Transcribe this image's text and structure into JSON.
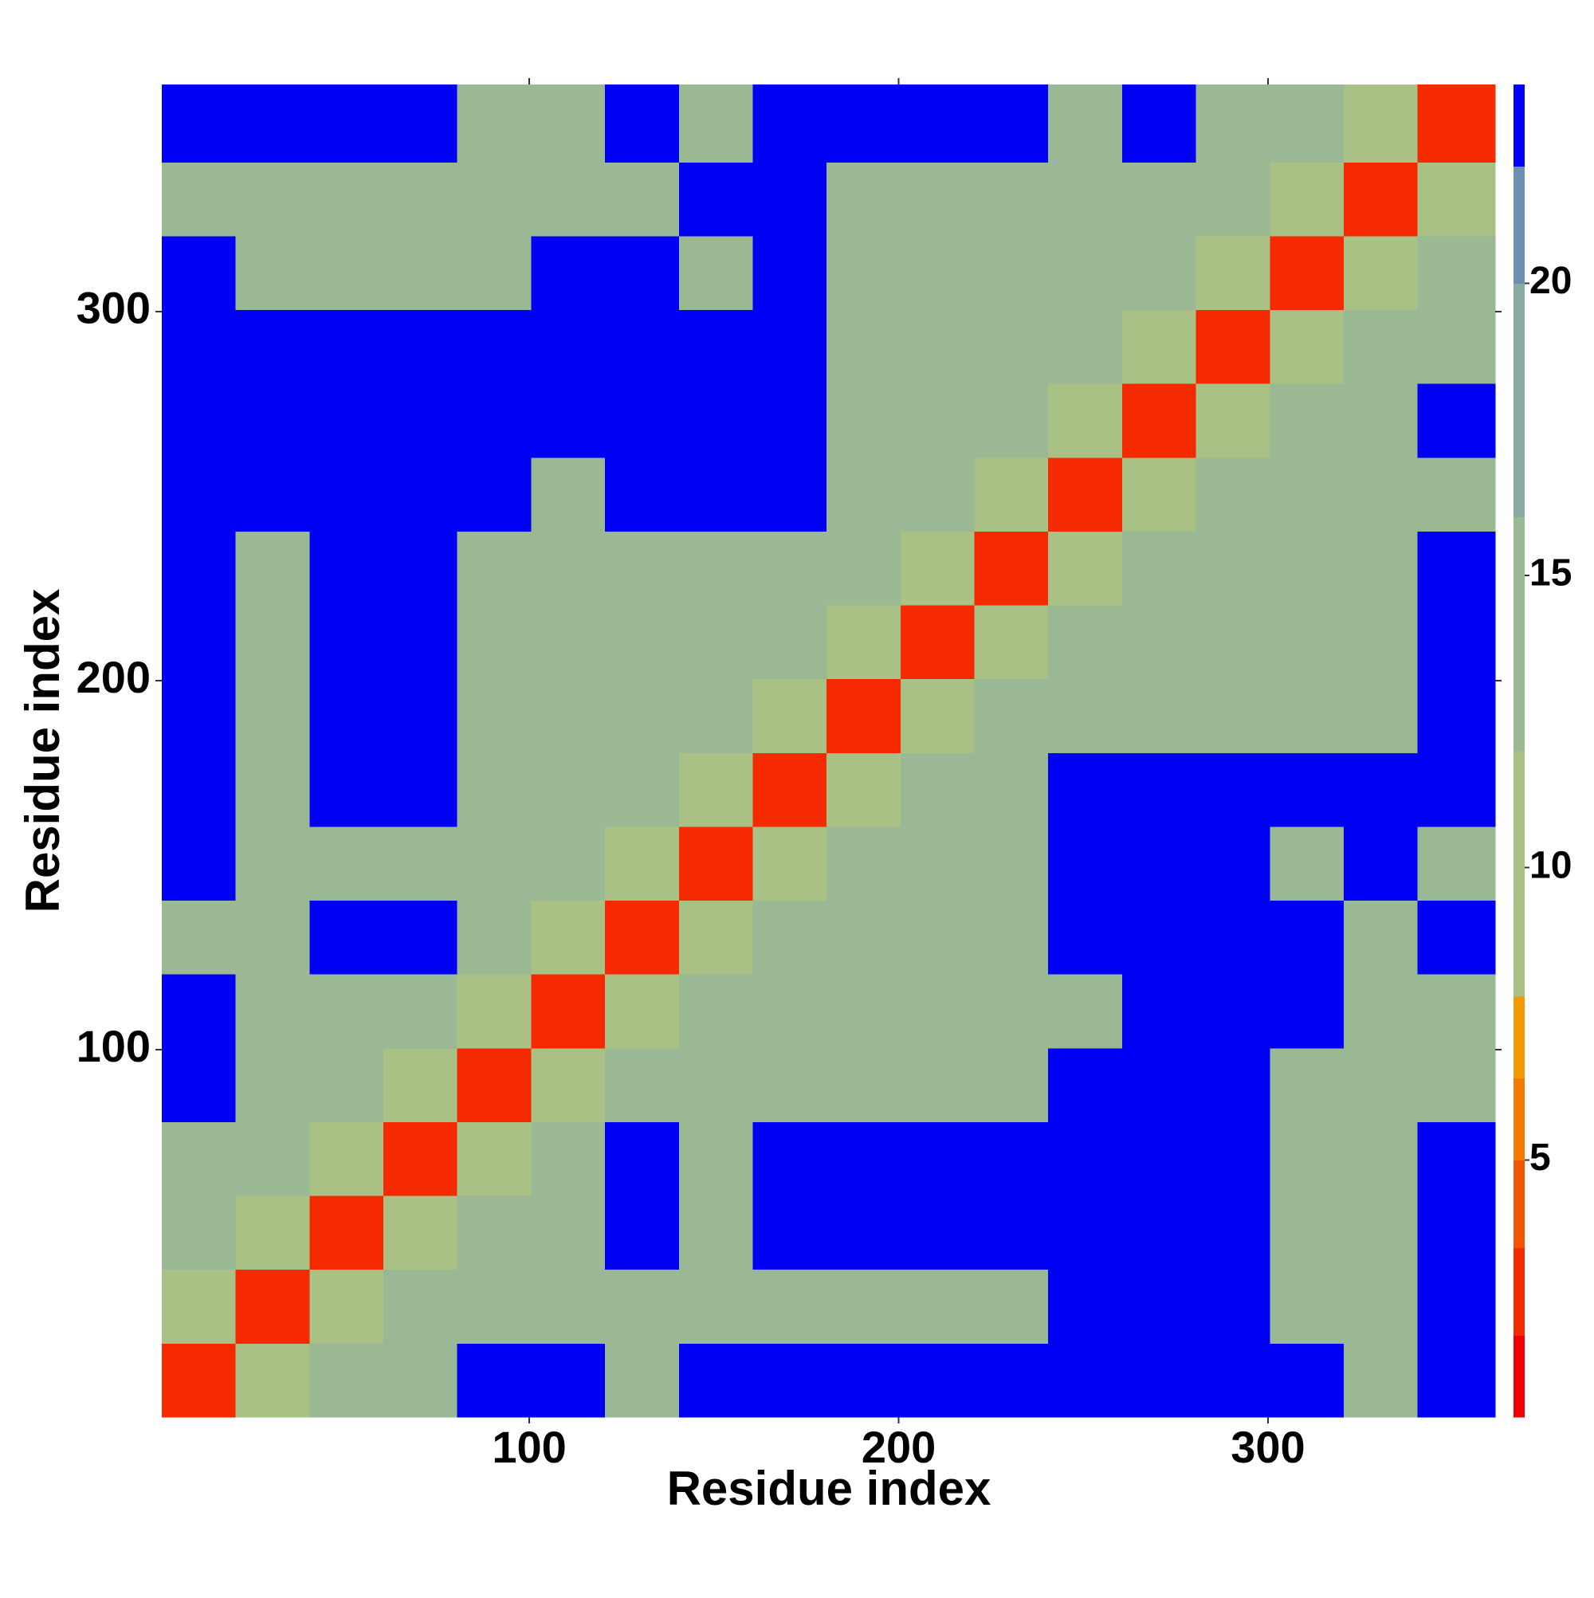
{
  "chart_data": {
    "type": "heatmap",
    "xlabel": "Residue index",
    "ylabel": "Residue index",
    "x_edges": [
      0.5,
      20.5,
      40.5,
      60.5,
      80.5,
      100.5,
      120.5,
      140.5,
      160.5,
      180.5,
      200.5,
      220.5,
      240.5,
      260.5,
      280.5,
      300.5,
      320.5,
      340.5,
      361.5
    ],
    "y_edges": [
      0.5,
      20.5,
      40.5,
      60.5,
      80.5,
      100.5,
      120.5,
      140.5,
      160.5,
      180.5,
      200.5,
      220.5,
      240.5,
      260.5,
      280.5,
      300.5,
      320.5,
      340.5,
      361.5
    ],
    "xlim": [
      0.5,
      361.5
    ],
    "ylim": [
      0.5,
      361.5
    ],
    "xticks": [
      100,
      200,
      300
    ],
    "yticks": [
      100,
      200,
      300
    ],
    "z": [
      [
        3,
        9,
        13,
        15,
        23,
        23,
        15,
        23,
        23,
        23,
        23,
        23,
        23,
        23,
        23,
        23,
        15,
        23
      ],
      [
        9,
        3,
        9,
        12,
        12,
        12,
        13,
        12,
        13,
        12,
        13,
        13,
        23,
        23,
        23,
        13,
        12,
        23
      ],
      [
        13,
        9,
        3,
        9,
        12,
        15,
        23,
        12,
        23,
        23,
        23,
        23,
        23,
        23,
        23,
        15,
        15,
        23
      ],
      [
        15,
        12,
        9,
        3,
        9,
        12,
        23,
        12,
        23,
        23,
        23,
        23,
        23,
        23,
        23,
        13,
        15,
        23
      ],
      [
        23,
        12,
        12,
        9,
        3,
        9,
        12,
        12,
        13,
        12,
        13,
        12,
        23,
        23,
        23,
        12,
        12,
        12
      ],
      [
        23,
        12,
        15,
        12,
        9,
        3,
        9,
        12,
        12,
        13,
        13,
        13,
        15,
        23,
        23,
        23,
        13,
        13
      ],
      [
        15,
        13,
        23,
        23,
        12,
        9,
        3,
        9,
        12,
        13,
        13,
        15,
        23,
        23,
        23,
        23,
        13,
        23
      ],
      [
        23,
        12,
        12,
        12,
        12,
        12,
        9,
        3,
        9,
        12,
        13,
        15,
        23,
        23,
        23,
        15,
        23,
        15
      ],
      [
        23,
        13,
        23,
        23,
        13,
        12,
        12,
        9,
        3,
        9,
        12,
        12,
        23,
        23,
        23,
        23,
        23,
        23
      ],
      [
        23,
        12,
        23,
        23,
        12,
        13,
        13,
        12,
        9,
        3,
        9,
        12,
        12,
        13,
        13,
        13,
        13,
        23
      ],
      [
        23,
        13,
        23,
        23,
        13,
        13,
        13,
        13,
        12,
        9,
        3,
        9,
        12,
        12,
        12,
        13,
        13,
        23
      ],
      [
        23,
        13,
        23,
        23,
        12,
        13,
        15,
        15,
        12,
        12,
        9,
        3,
        9,
        12,
        12,
        13,
        13,
        23
      ],
      [
        23,
        23,
        23,
        23,
        23,
        15,
        23,
        23,
        23,
        12,
        12,
        9,
        3,
        9,
        12,
        13,
        13,
        13
      ],
      [
        23,
        23,
        23,
        23,
        23,
        23,
        23,
        23,
        23,
        13,
        12,
        12,
        9,
        3,
        9,
        12,
        13,
        23
      ],
      [
        23,
        23,
        23,
        23,
        23,
        23,
        23,
        23,
        23,
        13,
        12,
        12,
        12,
        9,
        3,
        9,
        12,
        12
      ],
      [
        23,
        13,
        15,
        13,
        12,
        23,
        23,
        15,
        23,
        13,
        13,
        13,
        13,
        12,
        9,
        3,
        9,
        12
      ],
      [
        15,
        12,
        15,
        15,
        12,
        13,
        13,
        23,
        23,
        13,
        13,
        13,
        13,
        13,
        12,
        9,
        3,
        9
      ],
      [
        23,
        23,
        23,
        23,
        12,
        13,
        23,
        15,
        23,
        23,
        23,
        23,
        13,
        23,
        12,
        12,
        9,
        3
      ]
    ],
    "zlim": [
      0.6,
      23.4
    ],
    "zticks": [
      5,
      10,
      15,
      20
    ],
    "colorscale": {
      "levels": [
        0.6,
        2,
        3.5,
        5,
        6.4,
        7.8,
        12,
        16,
        20,
        22,
        23.4
      ],
      "colors": [
        "#f00000",
        "#f52a00",
        "#f25500",
        "#f47a00",
        "#f29a00",
        "#a9c184",
        "#9bb894",
        "#8aaaa4",
        "#6c8fb2",
        "#0000f5"
      ]
    }
  }
}
